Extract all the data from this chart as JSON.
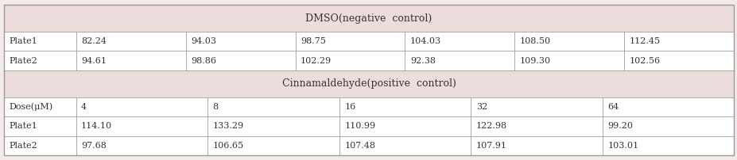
{
  "background_color": "#f5eaea",
  "header_bg": "#eddcdc",
  "cell_bg": "#ffffff",
  "line_color": "#999999",
  "text_color": "#333333",
  "section1_header": "DMSO(negative  control)",
  "section2_header": "Cinnamaldehyde(positive  control)",
  "section1_rows": [
    [
      "Plate1",
      "82.24",
      "94.03",
      "98.75",
      "104.03",
      "108.50",
      "112.45"
    ],
    [
      "Plate2",
      "94.61",
      "98.86",
      "102.29",
      "92.38",
      "109.30",
      "102.56"
    ]
  ],
  "section2_header_row": [
    "Dose(μM)",
    "4",
    "8",
    "16",
    "32",
    "64"
  ],
  "section2_rows": [
    [
      "Plate1",
      "114.10",
      "133.29",
      "110.99",
      "122.98",
      "99.20"
    ],
    [
      "Plate2",
      "97.68",
      "106.65",
      "107.48",
      "107.91",
      "103.01"
    ]
  ],
  "font_size": 8.0,
  "header_font_size": 9.0,
  "fig_width": 9.28,
  "fig_height": 2.02,
  "dpi": 100
}
